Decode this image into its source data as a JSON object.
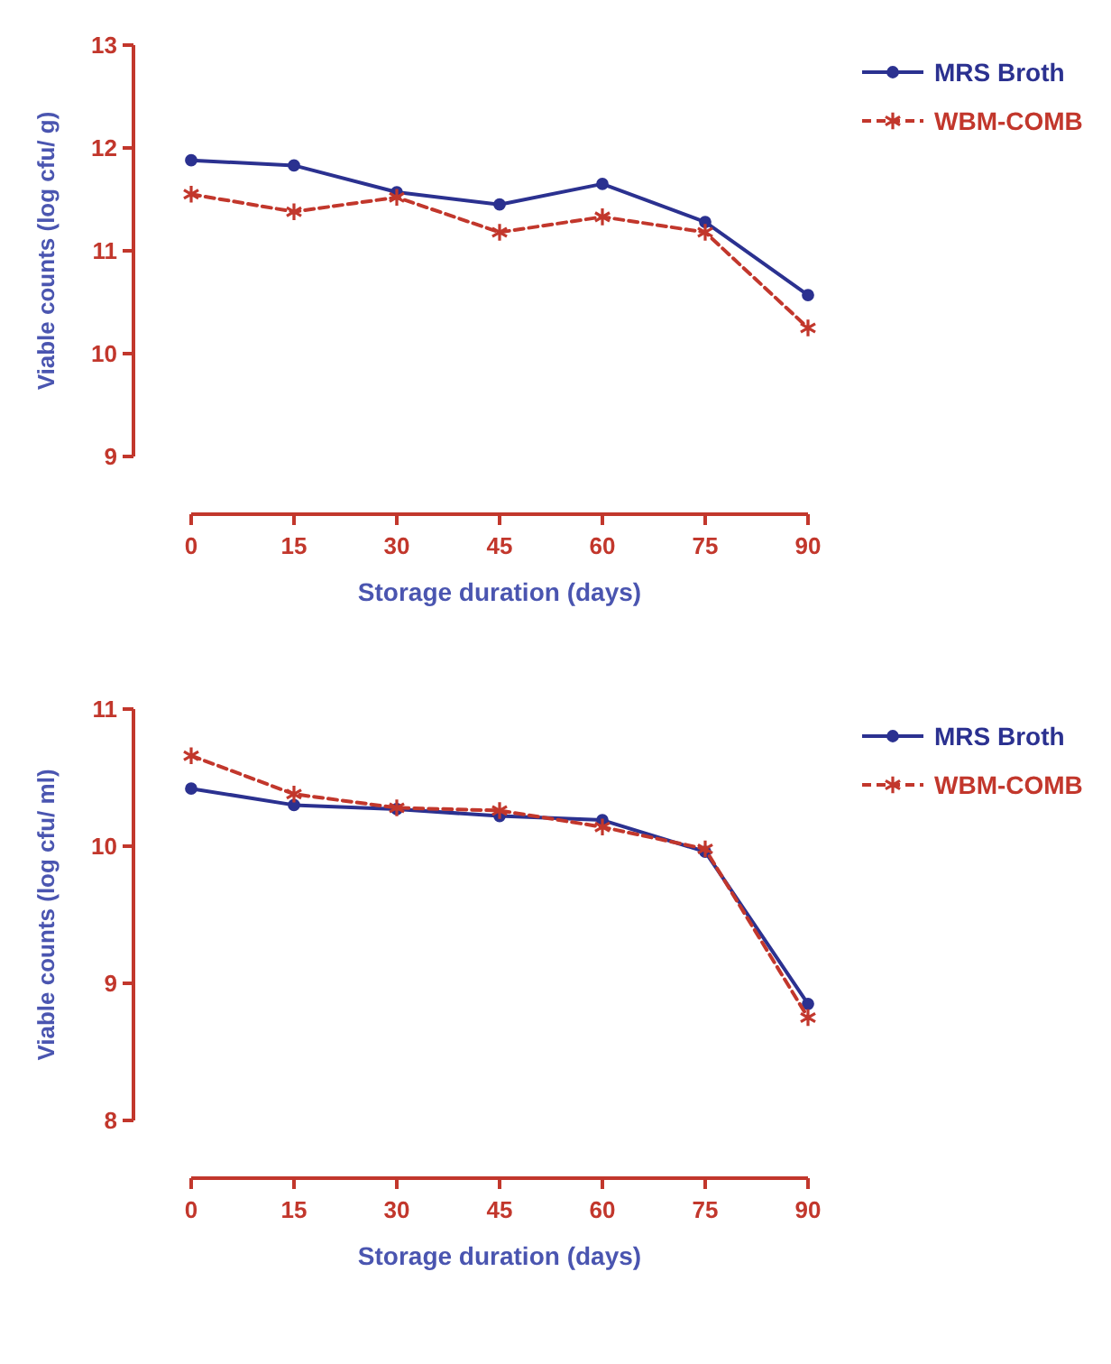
{
  "chart_data": [
    {
      "type": "line",
      "xlabel": "Storage duration (days)",
      "ylabel": "Viable counts (log cfu/ g)",
      "x": [
        0,
        15,
        30,
        45,
        60,
        75,
        90
      ],
      "xlim": [
        0,
        90
      ],
      "xticks": [
        0,
        15,
        30,
        45,
        60,
        75,
        90
      ],
      "ylim": [
        9,
        13
      ],
      "yticks": [
        9,
        10,
        11,
        12,
        13
      ],
      "grid": false,
      "legend": "right",
      "series": [
        {
          "name": "MRS Broth",
          "color": "#2b3190",
          "marker": "circle",
          "line_style": "solid",
          "values": [
            11.88,
            11.83,
            11.57,
            11.45,
            11.65,
            11.28,
            10.57
          ]
        },
        {
          "name": "WBM-COMB",
          "color": "#c2372c",
          "marker": "cross",
          "line_style": "dashed",
          "values": [
            11.55,
            11.38,
            11.52,
            11.18,
            11.33,
            11.18,
            10.25
          ]
        }
      ]
    },
    {
      "type": "line",
      "xlabel": "Storage duration (days)",
      "ylabel": "Viable counts (log cfu/ ml)",
      "x": [
        0,
        15,
        30,
        45,
        60,
        75,
        90
      ],
      "xlim": [
        0,
        90
      ],
      "xticks": [
        0,
        15,
        30,
        45,
        60,
        75,
        90
      ],
      "ylim": [
        8,
        11
      ],
      "yticks": [
        8,
        9,
        10,
        11
      ],
      "grid": false,
      "legend": "right",
      "series": [
        {
          "name": "MRS Broth",
          "color": "#2b3190",
          "marker": "circle",
          "line_style": "solid",
          "values": [
            10.42,
            10.3,
            10.27,
            10.22,
            10.19,
            9.96,
            8.85
          ]
        },
        {
          "name": "WBM-COMB",
          "color": "#c2372c",
          "marker": "cross",
          "line_style": "dashed",
          "values": [
            10.66,
            10.38,
            10.28,
            10.26,
            10.14,
            9.98,
            8.75
          ]
        }
      ]
    }
  ]
}
